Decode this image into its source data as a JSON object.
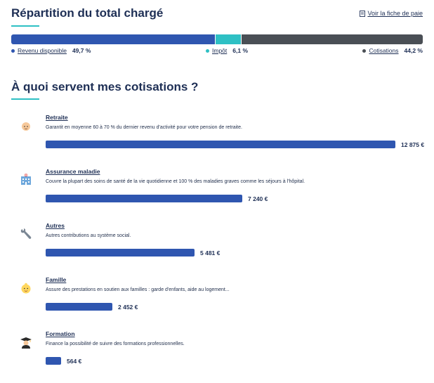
{
  "header": {
    "title": "Répartition du total chargé",
    "payslip_link": "Voir la fiche de paie"
  },
  "breakdown": {
    "segments": [
      {
        "label": "Revenu disponible",
        "value": "49,7 %",
        "fraction": 0.497,
        "color": "#2f56b0"
      },
      {
        "label": "Impôt",
        "value": "6,1 %",
        "fraction": 0.061,
        "color": "#2ec0c4"
      },
      {
        "label": "Cotisations",
        "value": "44,2 %",
        "fraction": 0.442,
        "color": "#4a4f55"
      }
    ]
  },
  "contributions": {
    "title": "À quoi servent mes cotisations ?",
    "bar_color": "#2f56b0",
    "max_value": 12875,
    "items": [
      {
        "name": "Retraite",
        "description": "Garantit en moyenne 60 à 70 % du dernier revenu d'activité pour votre pension de retraite.",
        "amount": "12 875 €",
        "value": 12875,
        "icon": "elderly-person-icon"
      },
      {
        "name": "Assurance maladie",
        "description": "Couvre la plupart des soins de santé de la vie quotidienne et 100 % des maladies graves comme les séjours à l'hôpital.",
        "amount": "7 240 €",
        "value": 7240,
        "icon": "hospital-icon"
      },
      {
        "name": "Autres",
        "description": "Autres contributions au système social.",
        "amount": "5 481 €",
        "value": 5481,
        "icon": "wrench-icon"
      },
      {
        "name": "Famille",
        "description": "Assure des prestations en soutien aux familles : garde d'enfants, aide au logement...",
        "amount": "2 452 €",
        "value": 2452,
        "icon": "baby-icon"
      },
      {
        "name": "Formation",
        "description": "Finance la possibilité de suivre des formations professionnelles.",
        "amount": "564 €",
        "value": 564,
        "icon": "graduate-icon"
      }
    ]
  }
}
